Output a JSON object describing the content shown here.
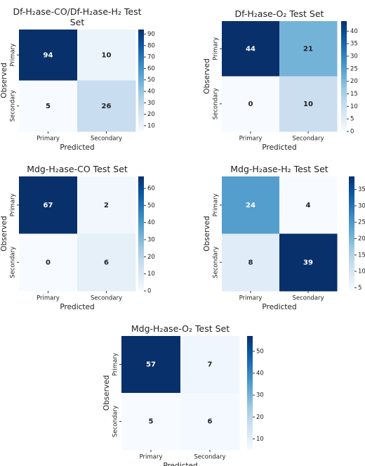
{
  "chart_data": [
    {
      "type": "heatmap",
      "title": "Df-H₂ase-CO/Df-H₂ase-H₂ Test Set",
      "xlabel": "Predicted",
      "ylabel": "Observed",
      "categories": [
        "Primary",
        "Secondary"
      ],
      "y_categories": [
        "Primary",
        "Secondary"
      ],
      "values": [
        [
          94,
          10
        ],
        [
          5,
          26
        ]
      ],
      "colormap": "Blues",
      "zlim": [
        5,
        94
      ],
      "zticks": [
        10,
        20,
        30,
        40,
        50,
        60,
        70,
        80,
        90
      ]
    },
    {
      "type": "heatmap",
      "title": "Df-H₂ase-O₂ Test Set",
      "xlabel": "Predicted",
      "ylabel": "Observed",
      "categories": [
        "Primary",
        "Secondary"
      ],
      "y_categories": [
        "Primary",
        "Secondary"
      ],
      "values": [
        [
          44,
          21
        ],
        [
          0,
          10
        ]
      ],
      "colormap": "Blues",
      "zlim": [
        0,
        44
      ],
      "zticks": [
        0,
        5,
        10,
        15,
        20,
        25,
        30,
        35,
        40
      ]
    },
    {
      "type": "heatmap",
      "title": "Mdg-H₂ase-CO Test Set",
      "xlabel": "Predicted",
      "ylabel": "Observed",
      "categories": [
        "Primary",
        "Secondary"
      ],
      "y_categories": [
        "Primary",
        "Secondary"
      ],
      "values": [
        [
          67,
          2
        ],
        [
          0,
          6
        ]
      ],
      "colormap": "Blues",
      "zlim": [
        0,
        67
      ],
      "zticks": [
        0,
        10,
        20,
        30,
        40,
        50,
        60
      ]
    },
    {
      "type": "heatmap",
      "title": "Mdg-H₂ase-H₂ Test Set",
      "xlabel": "Predicted",
      "ylabel": "Observed",
      "categories": [
        "Primary",
        "Secondary"
      ],
      "y_categories": [
        "Primary",
        "Secondary"
      ],
      "values": [
        [
          24,
          4
        ],
        [
          8,
          39
        ]
      ],
      "colormap": "Blues",
      "zlim": [
        4,
        39
      ],
      "zticks": [
        5,
        10,
        15,
        20,
        25,
        30,
        35
      ]
    },
    {
      "type": "heatmap",
      "title": "Mdg-H₂ase-O₂ Test Set",
      "xlabel": "Predicted",
      "ylabel": "Observed",
      "categories": [
        "Primary",
        "Secondary"
      ],
      "y_categories": [
        "Primary",
        "Secondary"
      ],
      "values": [
        [
          57,
          7
        ],
        [
          5,
          6
        ]
      ],
      "colormap": "Blues",
      "zlim": [
        5,
        57
      ],
      "zticks": [
        10,
        20,
        30,
        40,
        50
      ]
    }
  ]
}
